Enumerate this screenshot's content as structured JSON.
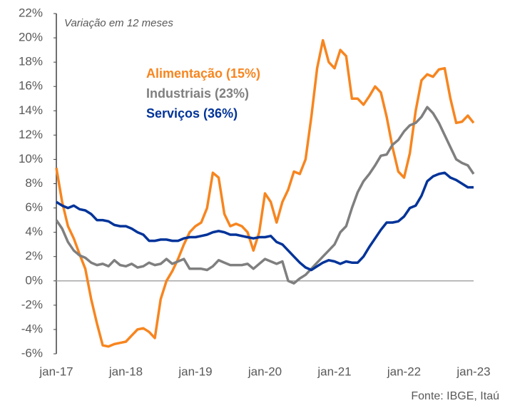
{
  "chart_data": {
    "type": "line",
    "subtitle": "Variação em 12 meses",
    "source": "Fonte: IBGE, Itaú",
    "categories": [
      "jan-17",
      null,
      null,
      null,
      null,
      null,
      null,
      null,
      null,
      null,
      null,
      null,
      "jan-18",
      null,
      null,
      null,
      null,
      null,
      null,
      null,
      null,
      null,
      null,
      null,
      "jan-19",
      null,
      null,
      null,
      null,
      null,
      null,
      null,
      null,
      null,
      null,
      null,
      "jan-20",
      null,
      null,
      null,
      null,
      null,
      null,
      null,
      null,
      null,
      null,
      null,
      "jan-21",
      null,
      null,
      null,
      null,
      null,
      null,
      null,
      null,
      null,
      null,
      null,
      "jan-22",
      null,
      null,
      null,
      null,
      null,
      null,
      null,
      null,
      null,
      null,
      null,
      "jan-23"
    ],
    "series": [
      {
        "name": "Alimentação (15%)",
        "color": "#f7851f",
        "values": [
          9.3,
          6.5,
          4.5,
          3.5,
          2.2,
          1.0,
          -1.5,
          -3.5,
          -5.3,
          -5.4,
          -5.2,
          -5.1,
          -5.0,
          -4.5,
          -4.0,
          -3.9,
          -4.2,
          -4.7,
          -1.5,
          0.0,
          0.8,
          1.8,
          3.0,
          4.0,
          4.5,
          4.8,
          6.0,
          8.9,
          8.5,
          5.5,
          4.5,
          4.7,
          4.5,
          4.0,
          2.5,
          4.0,
          7.2,
          6.5,
          4.8,
          6.5,
          7.5,
          9.0,
          8.8,
          10.0,
          13.5,
          17.5,
          19.8,
          18.0,
          17.5,
          19.0,
          18.5,
          15.0,
          15.0,
          14.5,
          15.2,
          16.0,
          15.5,
          13.5,
          11.0,
          9.0,
          8.5,
          10.5,
          14.0,
          16.5,
          17.0,
          16.8,
          17.4,
          17.5,
          15.0,
          13.0,
          13.1,
          13.6,
          13.0
        ]
      },
      {
        "name": "Industriais (23%)",
        "color": "#7f7f7f",
        "values": [
          5.0,
          4.3,
          3.2,
          2.5,
          2.1,
          1.9,
          1.5,
          1.3,
          1.4,
          1.2,
          1.7,
          1.3,
          1.2,
          1.4,
          1.1,
          1.2,
          1.5,
          1.3,
          1.4,
          1.8,
          1.4,
          1.6,
          1.8,
          1.0,
          1.0,
          1.0,
          0.9,
          1.2,
          1.7,
          1.5,
          1.3,
          1.3,
          1.3,
          1.4,
          1.0,
          1.4,
          1.8,
          1.6,
          1.4,
          1.6,
          0.0,
          -0.2,
          0.2,
          0.5,
          1.0,
          1.5,
          2.0,
          2.5,
          3.0,
          4.0,
          4.5,
          6.0,
          7.3,
          8.2,
          8.8,
          9.5,
          10.3,
          10.4,
          11.2,
          11.6,
          12.3,
          12.8,
          13.0,
          13.5,
          14.3,
          13.8,
          13.0,
          12.0,
          11.0,
          10.0,
          9.7,
          9.5,
          8.8
        ]
      },
      {
        "name": "Serviços (36%)",
        "color": "#003399",
        "values": [
          6.5,
          6.2,
          6.0,
          6.2,
          5.9,
          5.8,
          5.5,
          5.0,
          5.0,
          4.9,
          4.6,
          4.5,
          4.5,
          4.3,
          4.0,
          3.8,
          3.3,
          3.3,
          3.4,
          3.4,
          3.3,
          3.3,
          3.5,
          3.6,
          3.6,
          3.7,
          3.8,
          4.0,
          4.1,
          4.0,
          3.8,
          3.8,
          3.7,
          3.6,
          3.5,
          3.6,
          3.6,
          3.7,
          3.2,
          3.0,
          2.5,
          2.0,
          1.5,
          1.1,
          0.9,
          1.2,
          1.5,
          1.7,
          1.6,
          1.4,
          1.6,
          1.5,
          1.5,
          2.0,
          2.8,
          3.5,
          4.2,
          4.8,
          4.8,
          4.9,
          5.3,
          6.0,
          6.2,
          7.0,
          8.2,
          8.6,
          8.8,
          8.9,
          8.5,
          8.3,
          8.0,
          7.7,
          7.7
        ]
      }
    ],
    "ylim": [
      -6,
      22
    ],
    "yticks": [
      {
        "value": -6,
        "label": "-6%"
      },
      {
        "value": -4,
        "label": "-4%"
      },
      {
        "value": -2,
        "label": "-2%"
      },
      {
        "value": 0,
        "label": "0%"
      },
      {
        "value": 2,
        "label": "2%"
      },
      {
        "value": 4,
        "label": "4%"
      },
      {
        "value": 6,
        "label": "6%"
      },
      {
        "value": 8,
        "label": "8%"
      },
      {
        "value": 10,
        "label": "10%"
      },
      {
        "value": 12,
        "label": "12%"
      },
      {
        "value": 14,
        "label": "14%"
      },
      {
        "value": 16,
        "label": "16%"
      },
      {
        "value": 18,
        "label": "18%"
      },
      {
        "value": 20,
        "label": "20%"
      },
      {
        "value": 22,
        "label": "22%"
      }
    ],
    "grid": false
  }
}
